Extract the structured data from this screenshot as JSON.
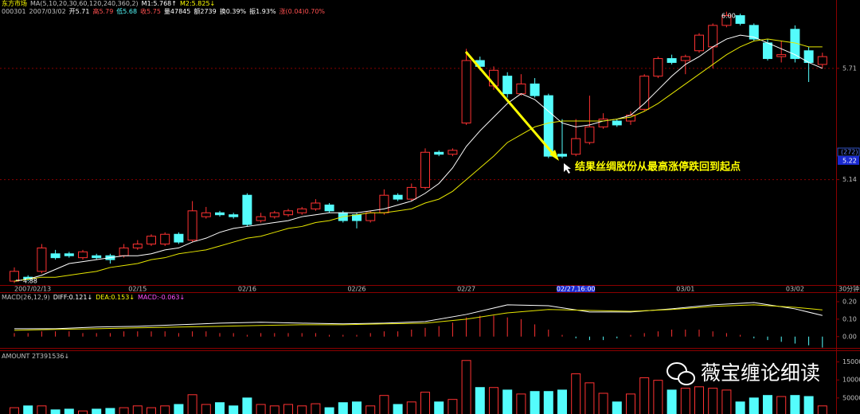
{
  "header": {
    "name": "东方市场",
    "indicator": "MA(5,10,20,30,60,120,240,360,2)",
    "m1": "M1:5.768↑",
    "m2": "M2:5.825↓",
    "code": "000301",
    "date": "2007/03/02",
    "open": "开5.71",
    "high": "高5.79",
    "low": "低5.68",
    "close": "收5.75",
    "volume": "量47845",
    "amount": "额2739",
    "turnover": "换0.39%",
    "amplitude": "振1.93%",
    "change": "涨(0.04)0.70%"
  },
  "period": "30分钟",
  "watermark": "薇宝缠论细读",
  "chart_data": [
    {
      "type": "candlestick",
      "categories": [
        "2007/02/13",
        null,
        null,
        null,
        null,
        null,
        null,
        null,
        null,
        "02/15",
        null,
        null,
        null,
        null,
        null,
        null,
        null,
        "02/16",
        null,
        null,
        null,
        null,
        null,
        null,
        null,
        "02/26",
        null,
        null,
        null,
        null,
        null,
        null,
        null,
        "02/27",
        null,
        null,
        null,
        null,
        null,
        null,
        null,
        "02/27,16:00",
        null,
        null,
        null,
        null,
        null,
        null,
        null,
        "03/01",
        null,
        null,
        null,
        null,
        null,
        null,
        null,
        "03/02",
        null,
        null
      ],
      "open": [
        4.62,
        4.64,
        4.67,
        4.76,
        4.76,
        4.74,
        4.75,
        4.75,
        4.75,
        4.79,
        4.81,
        4.81,
        4.86,
        4.83,
        4.95,
        4.97,
        4.96,
        5.06,
        4.93,
        4.95,
        4.96,
        4.97,
        4.99,
        5.01,
        4.97,
        4.96,
        4.93,
        4.97,
        5.06,
        5.04,
        5.1,
        5.28,
        5.27,
        5.43,
        5.75,
        5.62,
        5.67,
        5.58,
        5.63,
        5.57,
        5.27,
        5.27,
        5.33,
        5.41,
        5.44,
        5.44,
        5.5,
        5.67,
        5.76,
        5.75,
        5.8,
        5.82,
        5.93,
        5.98,
        5.93,
        5.84,
        5.77,
        5.91,
        5.8,
        5.73
      ],
      "high": [
        4.69,
        4.65,
        4.81,
        4.78,
        4.77,
        4.78,
        4.76,
        4.76,
        4.81,
        4.83,
        4.86,
        4.87,
        4.87,
        5.03,
        5.0,
        4.98,
        4.97,
        5.07,
        4.97,
        4.98,
        4.99,
        5.0,
        5.04,
        5.02,
        4.98,
        4.97,
        4.98,
        5.09,
        5.07,
        5.12,
        5.3,
        5.29,
        5.3,
        5.81,
        5.77,
        5.72,
        5.69,
        5.68,
        5.66,
        5.58,
        5.45,
        5.45,
        5.57,
        5.48,
        5.45,
        5.49,
        5.68,
        5.77,
        5.78,
        5.78,
        5.89,
        5.94,
        6.0,
        5.99,
        5.94,
        5.86,
        5.85,
        5.93,
        5.82,
        5.79
      ],
      "low": [
        4.61,
        4.62,
        4.66,
        4.73,
        4.74,
        4.73,
        4.73,
        4.71,
        4.74,
        4.78,
        4.8,
        4.8,
        4.81,
        4.82,
        4.94,
        4.95,
        4.94,
        4.9,
        4.92,
        4.94,
        4.95,
        4.96,
        4.98,
        4.97,
        4.92,
        4.89,
        4.92,
        4.96,
        5.03,
        5.03,
        5.09,
        5.26,
        5.26,
        5.42,
        5.7,
        5.6,
        5.56,
        5.57,
        5.56,
        5.25,
        5.25,
        5.26,
        5.32,
        5.4,
        5.41,
        5.42,
        5.49,
        5.66,
        5.73,
        5.68,
        5.79,
        5.71,
        5.92,
        5.93,
        5.85,
        5.75,
        5.74,
        5.74,
        5.64,
        5.71
      ],
      "close": [
        4.67,
        4.63,
        4.79,
        4.74,
        4.75,
        4.77,
        4.74,
        4.73,
        4.79,
        4.81,
        4.85,
        4.86,
        4.82,
        4.98,
        4.97,
        4.96,
        4.95,
        4.91,
        4.95,
        4.97,
        4.98,
        4.99,
        5.02,
        4.98,
        4.93,
        4.93,
        4.97,
        5.06,
        5.04,
        5.1,
        5.28,
        5.27,
        5.29,
        5.75,
        5.72,
        5.7,
        5.58,
        5.63,
        5.57,
        5.26,
        5.26,
        5.35,
        5.41,
        5.45,
        5.42,
        5.47,
        5.67,
        5.76,
        5.74,
        5.77,
        5.88,
        5.93,
        5.98,
        5.94,
        5.86,
        5.76,
        5.78,
        5.76,
        5.74,
        5.77
      ],
      "up_color": "#ff3232",
      "down_color": "#54fcfc",
      "series": [
        {
          "color": "#ffffff",
          "values": [
            4.62,
            4.63,
            4.65,
            4.68,
            4.71,
            4.72,
            4.73,
            4.74,
            4.75,
            4.75,
            4.76,
            4.78,
            4.79,
            4.82,
            4.84,
            4.87,
            4.89,
            4.9,
            4.91,
            4.92,
            4.93,
            4.95,
            4.96,
            4.97,
            4.97,
            4.97,
            4.98,
            4.99,
            5.01,
            5.03,
            5.07,
            5.12,
            5.2,
            5.31,
            5.39,
            5.46,
            5.53,
            5.58,
            5.55,
            5.49,
            5.43,
            5.41,
            5.42,
            5.44,
            5.45,
            5.47,
            5.53,
            5.6,
            5.67,
            5.73,
            5.77,
            5.82,
            5.86,
            5.88,
            5.87,
            5.84,
            5.81,
            5.78,
            5.74,
            5.71
          ]
        },
        {
          "color": "#e6e600",
          "values": [
            4.62,
            4.63,
            4.64,
            4.64,
            4.65,
            4.66,
            4.67,
            4.69,
            4.7,
            4.71,
            4.73,
            4.74,
            4.76,
            4.77,
            4.78,
            4.8,
            4.82,
            4.84,
            4.85,
            4.87,
            4.89,
            4.9,
            4.92,
            4.93,
            4.95,
            4.96,
            4.97,
            4.97,
            4.98,
            4.99,
            5.02,
            5.04,
            5.08,
            5.14,
            5.2,
            5.26,
            5.33,
            5.37,
            5.41,
            5.43,
            5.44,
            5.44,
            5.44,
            5.44,
            5.45,
            5.46,
            5.49,
            5.53,
            5.58,
            5.63,
            5.68,
            5.73,
            5.78,
            5.82,
            5.85,
            5.86,
            5.85,
            5.84,
            5.82,
            5.82
          ]
        }
      ],
      "ylim": [
        4.6,
        6.06
      ],
      "yticks": [
        5.71,
        5.14
      ],
      "annotations": [
        "6.00",
        "4.88",
        "结果丝绸股份从最高涨停跌回到起点"
      ],
      "cursor": {
        "count": "(272)",
        "price": "5.22"
      }
    },
    {
      "type": "line",
      "title": "MACD(26,12,9)",
      "labels": [
        "DIFF:0.121↓",
        "DEA:0.153↓",
        "MACD:-0.063↓"
      ],
      "x": [
        0,
        3,
        6,
        9,
        12,
        15,
        18,
        21,
        24,
        27,
        30,
        33,
        36,
        39,
        42,
        45,
        48,
        51,
        54,
        57,
        59
      ],
      "series": [
        {
          "color": "#ffffff",
          "values": [
            0.045,
            0.045,
            0.055,
            0.059,
            0.068,
            0.077,
            0.082,
            0.077,
            0.073,
            0.077,
            0.086,
            0.127,
            0.182,
            0.177,
            0.141,
            0.141,
            0.159,
            0.182,
            0.195,
            0.159,
            0.121
          ]
        },
        {
          "color": "#e6e600",
          "values": [
            0.036,
            0.041,
            0.045,
            0.05,
            0.055,
            0.059,
            0.064,
            0.068,
            0.068,
            0.073,
            0.077,
            0.1,
            0.136,
            0.155,
            0.15,
            0.145,
            0.155,
            0.173,
            0.182,
            0.168,
            0.153
          ]
        }
      ],
      "histogram": [
        0.02,
        0.02,
        0.03,
        0.03,
        0.03,
        0.02,
        0.02,
        0.02,
        0.03,
        0.03,
        0.03,
        0.03,
        0.02,
        0.03,
        0.03,
        0.02,
        0.02,
        0.01,
        0.02,
        0.02,
        0.02,
        0.02,
        0.02,
        0.01,
        0.01,
        0.01,
        0.02,
        0.03,
        0.03,
        0.04,
        0.05,
        0.06,
        0.08,
        0.11,
        0.12,
        0.12,
        0.11,
        0.1,
        0.07,
        0.04,
        0.01,
        -0.01,
        -0.02,
        -0.02,
        -0.01,
        0.01,
        0.02,
        0.03,
        0.04,
        0.04,
        0.04,
        0.03,
        0.02,
        0.01,
        -0.01,
        -0.02,
        -0.03,
        -0.04,
        -0.05,
        -0.063
      ],
      "up_color": "#ff3232",
      "down_color": "#54fcfc",
      "ylim": [
        -0.065,
        0.25
      ],
      "yticks": [
        {
          "value": 0.2,
          "label": "0.20"
        },
        {
          "value": 0.1,
          "label": "0.10"
        },
        {
          "value": 0,
          "label": "0.00"
        }
      ]
    },
    {
      "type": "bar",
      "title": "AMOUNT 2T391536↓",
      "values": [
        23000,
        28000,
        28000,
        17000,
        19000,
        14000,
        19000,
        21000,
        23000,
        28000,
        23000,
        28000,
        32000,
        59000,
        32000,
        37000,
        28000,
        50000,
        32000,
        28000,
        32000,
        28000,
        34000,
        23000,
        37000,
        39000,
        28000,
        57000,
        32000,
        39000,
        66000,
        39000,
        46000,
        154000,
        79000,
        79000,
        72000,
        61000,
        68000,
        68000,
        72000,
        117000,
        92000,
        63000,
        39000,
        61000,
        106000,
        99000,
        72000,
        77000,
        81000,
        77000,
        72000,
        39000,
        50000,
        57000,
        54000,
        57000,
        54000,
        28000
      ],
      "up_color": "#ff3232",
      "down_color": "#54fcfc",
      "ylim": [
        0,
        180000
      ],
      "yticks": [
        50000,
        100000,
        150000
      ]
    }
  ]
}
